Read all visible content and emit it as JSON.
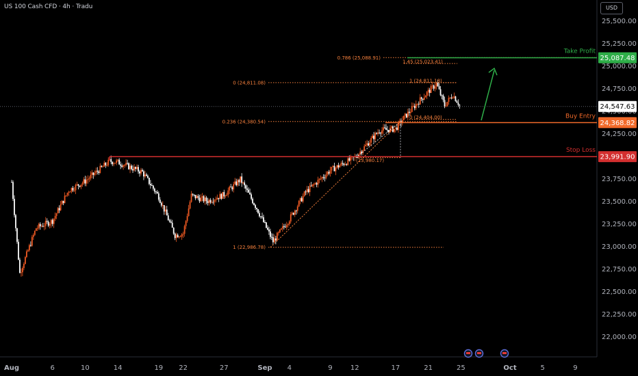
{
  "header": {
    "symbol": "US 100 Cash CFD · 4h · Tradu",
    "currency": "USD"
  },
  "colors": {
    "background": "#000000",
    "bull": "#f05a23",
    "bear": "#ffffff",
    "take_profit": "#2fae49",
    "buy_entry": "#f26a2a",
    "stop_loss": "#d32f2f",
    "fib": "#f7813d",
    "price_label_bg": "#ffffff"
  },
  "chart_data": {
    "type": "candlestick",
    "title": "US 100 Cash CFD · 4h · Tradu",
    "ylabel": "USD",
    "ylim": [
      21780,
      25720
    ],
    "y_ticks": [
      "25,500.00",
      "25,250.00",
      "25,000.00",
      "24,750.00",
      "24,500.00",
      "24,250.00",
      "24,000.00",
      "23,750.00",
      "23,500.00",
      "23,250.00",
      "23,000.00",
      "22,750.00",
      "22,500.00",
      "22,250.00",
      "22,000.00"
    ],
    "y_tick_values": [
      25500,
      25250,
      25000,
      24750,
      24500,
      24250,
      24000,
      23750,
      23500,
      23250,
      23000,
      22750,
      22500,
      22250,
      22000
    ],
    "x_ticks": [
      "Aug",
      "6",
      "10",
      "14",
      "19",
      "22",
      "27",
      "Sep",
      "4",
      "9",
      "12",
      "17",
      "21",
      "25",
      "Oct",
      "5",
      "9"
    ],
    "x_tick_dates": [
      "2025-08-01",
      "2025-08-06",
      "2025-08-10",
      "2025-08-14",
      "2025-08-19",
      "2025-08-22",
      "2025-08-27",
      "2025-09-01",
      "2025-09-04",
      "2025-09-09",
      "2025-09-12",
      "2025-09-17",
      "2025-09-21",
      "2025-09-25",
      "2025-10-01",
      "2025-10-05",
      "2025-10-09"
    ],
    "price_path": [
      [
        "2025-08-01",
        23710
      ],
      [
        "2025-08-02",
        22700
      ],
      [
        "2025-08-04",
        23200
      ],
      [
        "2025-08-06",
        23280
      ],
      [
        "2025-08-08",
        23620
      ],
      [
        "2025-08-10",
        23720
      ],
      [
        "2025-08-13",
        23940
      ],
      [
        "2025-08-14",
        23930
      ],
      [
        "2025-08-17",
        23820
      ],
      [
        "2025-08-19",
        23550
      ],
      [
        "2025-08-21",
        23120
      ],
      [
        "2025-08-22",
        23140
      ],
      [
        "2025-08-23",
        23560
      ],
      [
        "2025-08-25",
        23500
      ],
      [
        "2025-08-27",
        23570
      ],
      [
        "2025-08-29",
        23740
      ],
      [
        "2025-08-31",
        23420
      ],
      [
        "2025-09-02",
        23050
      ],
      [
        "2025-09-04",
        23300
      ],
      [
        "2025-09-06",
        23600
      ],
      [
        "2025-09-09",
        23840
      ],
      [
        "2025-09-12",
        23980
      ],
      [
        "2025-09-15",
        24280
      ],
      [
        "2025-09-17",
        24300
      ],
      [
        "2025-09-18",
        24420
      ],
      [
        "2025-09-20",
        24620
      ],
      [
        "2025-09-22",
        24800
      ],
      [
        "2025-09-23",
        24560
      ],
      [
        "2025-09-24",
        24680
      ],
      [
        "2025-09-25",
        24540
      ]
    ],
    "levels": [
      {
        "name": "Take Profit",
        "value": 25087.48,
        "label": "25,087.48",
        "color": "#2fae49"
      },
      {
        "name": "Buy Entry",
        "value": 24368.82,
        "label": "24,368.82",
        "color": "#f26a2a"
      },
      {
        "name": "Stop Loss",
        "value": 23991.9,
        "label": "23,991.90",
        "color": "#d32f2f"
      }
    ],
    "last_price": {
      "value": 24547.63,
      "label": "24,547.63"
    },
    "fib_annotations": [
      {
        "text": "0.786 (25,088.91)",
        "value": 25088.91
      },
      {
        "text": "1.45 (25,023.41)",
        "value": 25023.41
      },
      {
        "text": "0 (24,811.08)",
        "value": 24811.08
      },
      {
        "text": "1 (24,811.18)",
        "value": 24811.18
      },
      {
        "text": "0.236 (24,380.54)",
        "value": 24380.54
      },
      {
        "text": "0 (24,404.00)",
        "value": 24404.0
      },
      {
        "text": "(23,980.17)",
        "value": 23980.17
      },
      {
        "text": "1 (22,986.78)",
        "value": 22986.78
      }
    ]
  }
}
